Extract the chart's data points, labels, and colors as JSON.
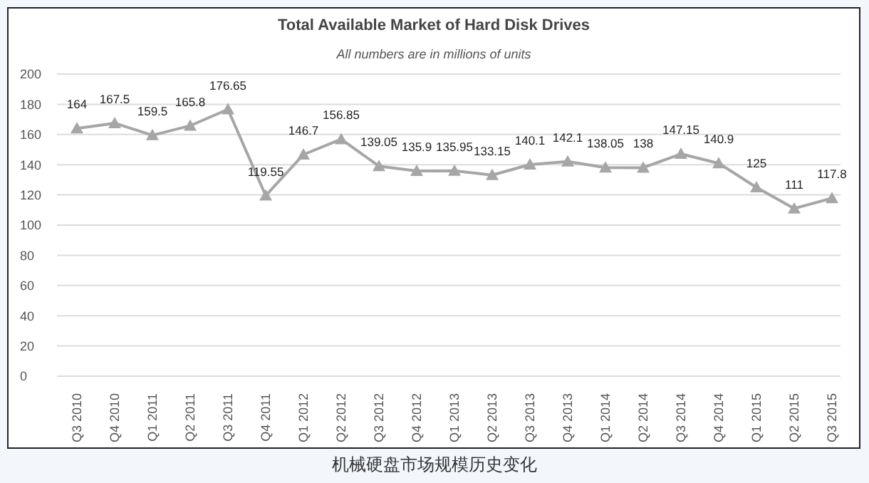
{
  "chart_data": {
    "type": "line",
    "title": "Total Available Market of Hard Disk Drives",
    "subtitle": "All numbers are in millions of units",
    "categories": [
      "Q3 2010",
      "Q4 2010",
      "Q1 2011",
      "Q2 2011",
      "Q3 2011",
      "Q4 2011",
      "Q1 2012",
      "Q2 2012",
      "Q3 2012",
      "Q4 2012",
      "Q1 2013",
      "Q2 2013",
      "Q3 2013",
      "Q4 2013",
      "Q1 2014",
      "Q2 2014",
      "Q3 2014",
      "Q4 2014",
      "Q1 2015",
      "Q2 2015",
      "Q3 2015"
    ],
    "series": [
      {
        "color": "#a6a6a6",
        "values": [
          164,
          167.5,
          159.5,
          165.8,
          176.65,
          119.55,
          146.7,
          156.85,
          139.05,
          135.9,
          135.95,
          133.15,
          140.1,
          142.1,
          138.05,
          138,
          147.15,
          140.9,
          125,
          111,
          117.8
        ]
      }
    ],
    "ylim": [
      0,
      200
    ],
    "yticks": [
      0,
      20,
      40,
      60,
      80,
      100,
      120,
      140,
      160,
      180,
      200
    ],
    "grid": "y",
    "marker": "triangle",
    "line_style": "solid",
    "data_labels": true,
    "annotations": [
      "机械硬盘市场规模历史变化"
    ]
  }
}
